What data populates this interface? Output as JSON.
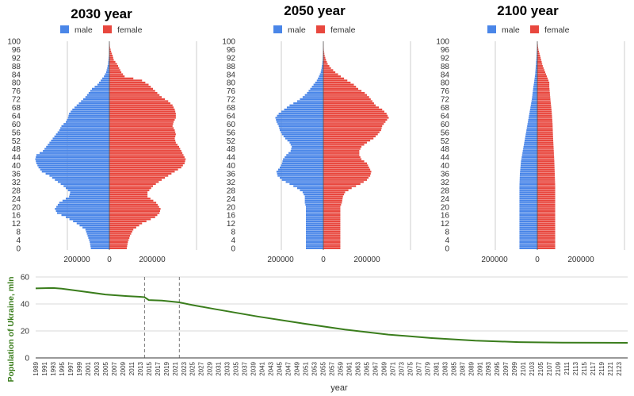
{
  "colors": {
    "male": "#4a86e8",
    "female": "#e8473e",
    "line": "#3a7d1c",
    "grid": "#cccccc"
  },
  "chart_data": [
    {
      "type": "bar",
      "title": "2030 year",
      "legend": [
        "male",
        "female"
      ],
      "age_ticks": [
        "0",
        "4",
        "8",
        "12",
        "16",
        "20",
        "24",
        "28",
        "32",
        "36",
        "40",
        "44",
        "48",
        "52",
        "56",
        "60",
        "64",
        "68",
        "72",
        "76",
        "80",
        "84",
        "88",
        "92",
        "96",
        "100"
      ],
      "x_tick_labels": [
        "200000",
        "0",
        "200000"
      ],
      "xlim": [
        -380000,
        400000
      ],
      "series": [
        {
          "name": "male",
          "values": [
            [
              0,
              85000
            ],
            [
              3,
              90000
            ],
            [
              6,
              100000
            ],
            [
              9,
              110000
            ],
            [
              12,
              150000
            ],
            [
              15,
              200000
            ],
            [
              17,
              240000
            ],
            [
              19,
              250000
            ],
            [
              22,
              230000
            ],
            [
              25,
              185000
            ],
            [
              27,
              180000
            ],
            [
              30,
              210000
            ],
            [
              33,
              250000
            ],
            [
              35,
              275000
            ],
            [
              37,
              310000
            ],
            [
              39,
              325000
            ],
            [
              41,
              335000
            ],
            [
              43,
              340000
            ],
            [
              45,
              335000
            ],
            [
              47,
              305000
            ],
            [
              49,
              290000
            ],
            [
              51,
              275000
            ],
            [
              53,
              260000
            ],
            [
              55,
              245000
            ],
            [
              57,
              230000
            ],
            [
              59,
              220000
            ],
            [
              61,
              200000
            ],
            [
              63,
              190000
            ],
            [
              65,
              185000
            ],
            [
              67,
              170000
            ],
            [
              69,
              150000
            ],
            [
              71,
              130000
            ],
            [
              73,
              110000
            ],
            [
              75,
              95000
            ],
            [
              77,
              80000
            ],
            [
              79,
              55000
            ],
            [
              81,
              40000
            ],
            [
              83,
              25000
            ],
            [
              85,
              15000
            ],
            [
              87,
              10000
            ],
            [
              89,
              6000
            ],
            [
              91,
              4000
            ],
            [
              93,
              2000
            ],
            [
              95,
              1500
            ],
            [
              97,
              800
            ],
            [
              100,
              0
            ]
          ]
        },
        {
          "name": "female",
          "values": [
            [
              0,
              80000
            ],
            [
              3,
              85000
            ],
            [
              6,
              95000
            ],
            [
              9,
              110000
            ],
            [
              12,
              150000
            ],
            [
              15,
              210000
            ],
            [
              17,
              230000
            ],
            [
              19,
              235000
            ],
            [
              22,
              215000
            ],
            [
              25,
              175000
            ],
            [
              27,
              175000
            ],
            [
              30,
              200000
            ],
            [
              33,
              240000
            ],
            [
              35,
              270000
            ],
            [
              37,
              300000
            ],
            [
              39,
              330000
            ],
            [
              41,
              345000
            ],
            [
              43,
              350000
            ],
            [
              45,
              340000
            ],
            [
              47,
              330000
            ],
            [
              49,
              320000
            ],
            [
              51,
              305000
            ],
            [
              53,
              300000
            ],
            [
              55,
              305000
            ],
            [
              57,
              300000
            ],
            [
              59,
              290000
            ],
            [
              61,
              295000
            ],
            [
              63,
              305000
            ],
            [
              65,
              305000
            ],
            [
              67,
              300000
            ],
            [
              69,
              290000
            ],
            [
              71,
              270000
            ],
            [
              73,
              240000
            ],
            [
              75,
              220000
            ],
            [
              77,
              200000
            ],
            [
              79,
              180000
            ],
            [
              81,
              150000
            ],
            [
              83,
              70000
            ],
            [
              85,
              55000
            ],
            [
              87,
              45000
            ],
            [
              89,
              35000
            ],
            [
              91,
              20000
            ],
            [
              93,
              15000
            ],
            [
              95,
              8000
            ],
            [
              97,
              3000
            ],
            [
              100,
              0
            ]
          ]
        }
      ]
    },
    {
      "type": "bar",
      "title": "2050 year",
      "legend": [
        "male",
        "female"
      ],
      "age_ticks": [
        "0",
        "4",
        "8",
        "12",
        "16",
        "20",
        "24",
        "28",
        "32",
        "36",
        "40",
        "44",
        "48",
        "52",
        "56",
        "60",
        "64",
        "68",
        "72",
        "76",
        "80",
        "84",
        "88",
        "92",
        "96",
        "100"
      ],
      "x_tick_labels": [
        "200000",
        "0",
        "200000"
      ],
      "xlim": [
        -380000,
        400000
      ],
      "series": [
        {
          "name": "male",
          "values": [
            [
              0,
              80000
            ],
            [
              20,
              80000
            ],
            [
              22,
              85000
            ],
            [
              25,
              85000
            ],
            [
              27,
              95000
            ],
            [
              29,
              120000
            ],
            [
              31,
              155000
            ],
            [
              33,
              190000
            ],
            [
              35,
              210000
            ],
            [
              37,
              215000
            ],
            [
              39,
              200000
            ],
            [
              41,
              190000
            ],
            [
              43,
              185000
            ],
            [
              45,
              170000
            ],
            [
              47,
              150000
            ],
            [
              49,
              145000
            ],
            [
              51,
              155000
            ],
            [
              53,
              175000
            ],
            [
              55,
              190000
            ],
            [
              57,
              200000
            ],
            [
              59,
              205000
            ],
            [
              61,
              215000
            ],
            [
              63,
              220000
            ],
            [
              65,
              205000
            ],
            [
              67,
              180000
            ],
            [
              69,
              155000
            ],
            [
              71,
              120000
            ],
            [
              73,
              95000
            ],
            [
              75,
              75000
            ],
            [
              77,
              60000
            ],
            [
              79,
              45000
            ],
            [
              81,
              30000
            ],
            [
              83,
              20000
            ],
            [
              85,
              12000
            ],
            [
              87,
              8000
            ],
            [
              89,
              5000
            ],
            [
              91,
              3000
            ],
            [
              93,
              2000
            ],
            [
              95,
              1000
            ],
            [
              97,
              500
            ],
            [
              100,
              0
            ]
          ]
        },
        {
          "name": "female",
          "values": [
            [
              0,
              78000
            ],
            [
              20,
              78000
            ],
            [
              22,
              85000
            ],
            [
              25,
              90000
            ],
            [
              27,
              100000
            ],
            [
              29,
              130000
            ],
            [
              31,
              170000
            ],
            [
              33,
              200000
            ],
            [
              35,
              215000
            ],
            [
              37,
              220000
            ],
            [
              39,
              210000
            ],
            [
              41,
              200000
            ],
            [
              43,
              175000
            ],
            [
              45,
              165000
            ],
            [
              47,
              165000
            ],
            [
              49,
              175000
            ],
            [
              51,
              200000
            ],
            [
              53,
              230000
            ],
            [
              55,
              250000
            ],
            [
              57,
              265000
            ],
            [
              59,
              270000
            ],
            [
              61,
              285000
            ],
            [
              63,
              300000
            ],
            [
              65,
              290000
            ],
            [
              67,
              270000
            ],
            [
              69,
              240000
            ],
            [
              71,
              225000
            ],
            [
              73,
              210000
            ],
            [
              75,
              190000
            ],
            [
              77,
              160000
            ],
            [
              79,
              140000
            ],
            [
              81,
              110000
            ],
            [
              83,
              80000
            ],
            [
              85,
              55000
            ],
            [
              87,
              35000
            ],
            [
              89,
              20000
            ],
            [
              91,
              12000
            ],
            [
              93,
              6000
            ],
            [
              95,
              3000
            ],
            [
              97,
              1000
            ],
            [
              100,
              0
            ]
          ]
        }
      ]
    },
    {
      "type": "bar",
      "title": "2100 year",
      "legend": [
        "male",
        "female"
      ],
      "age_ticks": [
        "0",
        "4",
        "8",
        "12",
        "16",
        "20",
        "24",
        "28",
        "32",
        "36",
        "40",
        "44",
        "48",
        "52",
        "56",
        "60",
        "64",
        "68",
        "72",
        "76",
        "80",
        "84",
        "88",
        "92",
        "96",
        "100"
      ],
      "x_tick_labels": [
        "200000",
        "0",
        "200000"
      ],
      "xlim": [
        -380000,
        400000
      ],
      "series": [
        {
          "name": "male",
          "values": [
            [
              0,
              82000
            ],
            [
              30,
              82000
            ],
            [
              36,
              80000
            ],
            [
              42,
              75000
            ],
            [
              48,
              65000
            ],
            [
              54,
              55000
            ],
            [
              60,
              45000
            ],
            [
              66,
              35000
            ],
            [
              72,
              25000
            ],
            [
              78,
              18000
            ],
            [
              80,
              15000
            ],
            [
              84,
              10000
            ],
            [
              88,
              7000
            ],
            [
              92,
              4000
            ],
            [
              96,
              2000
            ],
            [
              100,
              0
            ]
          ]
        },
        {
          "name": "female",
          "values": [
            [
              0,
              82000
            ],
            [
              30,
              82000
            ],
            [
              36,
              80000
            ],
            [
              42,
              78000
            ],
            [
              48,
              75000
            ],
            [
              54,
              72000
            ],
            [
              60,
              70000
            ],
            [
              66,
              66000
            ],
            [
              72,
              60000
            ],
            [
              78,
              55000
            ],
            [
              80,
              55000
            ],
            [
              84,
              40000
            ],
            [
              88,
              25000
            ],
            [
              92,
              15000
            ],
            [
              96,
              5000
            ],
            [
              100,
              0
            ]
          ]
        }
      ]
    },
    {
      "type": "line",
      "title": "",
      "ylabel": "Population of Ukraine, mln",
      "xlabel": "year",
      "ylim": [
        0,
        60
      ],
      "y_ticks": [
        "0",
        "20",
        "40",
        "60"
      ],
      "xlim": [
        1989,
        2125
      ],
      "x_tick_labels": [
        "1989",
        "1991",
        "1993",
        "1995",
        "1997",
        "1999",
        "2001",
        "2003",
        "2005",
        "2007",
        "2009",
        "2011",
        "2013",
        "2015",
        "2017",
        "2019",
        "2021",
        "2023",
        "2025",
        "2027",
        "2029",
        "2031",
        "2033",
        "2035",
        "2037",
        "2039",
        "2041",
        "2043",
        "2045",
        "2047",
        "2049",
        "2051",
        "2053",
        "2055",
        "2057",
        "2059",
        "2061",
        "2063",
        "2065",
        "2067",
        "2069",
        "2071",
        "2073",
        "2075",
        "2077",
        "2079",
        "2081",
        "2083",
        "2085",
        "2087",
        "2089",
        "2091",
        "2093",
        "2095",
        "2097",
        "2099",
        "2101",
        "2103",
        "2105",
        "2107",
        "2109",
        "2111",
        "2113",
        "2115",
        "2117",
        "2119",
        "2121",
        "2123"
      ],
      "vertical_markers": [
        2014,
        2022
      ],
      "series": [
        {
          "name": "Population",
          "x": [
            1989,
            1993,
            1995,
            2000,
            2005,
            2010,
            2013,
            2014,
            2015,
            2018,
            2022,
            2025,
            2030,
            2040,
            2050,
            2060,
            2070,
            2080,
            2090,
            2100,
            2110,
            2125
          ],
          "values": [
            51.5,
            51.8,
            51.3,
            49.2,
            47,
            45.8,
            45.3,
            45.0,
            42.9,
            42.5,
            41.2,
            39.2,
            36.3,
            30.7,
            25.7,
            21.0,
            17.3,
            14.7,
            12.8,
            11.7,
            11.3,
            11.2
          ]
        }
      ]
    }
  ]
}
